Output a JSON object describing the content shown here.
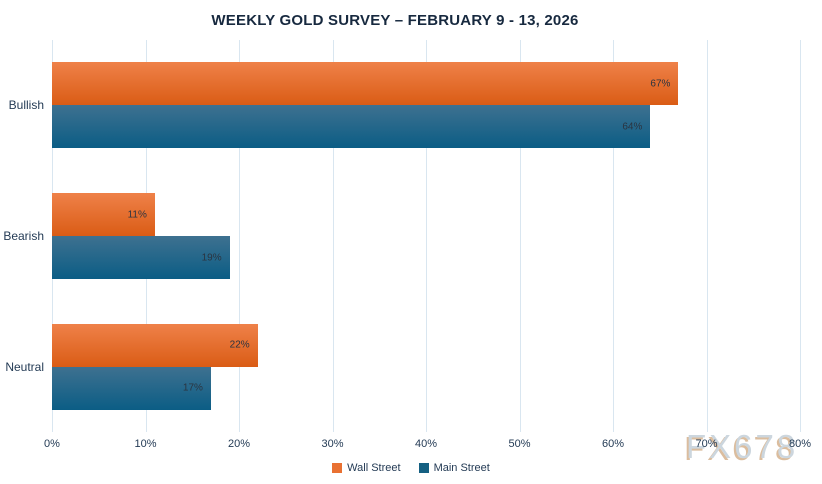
{
  "title": "WEEKLY GOLD SURVEY – FEBRUARY 9 - 13, 2026",
  "watermark": "FX678",
  "chart_data": {
    "type": "bar",
    "orientation": "horizontal",
    "title": "WEEKLY GOLD SURVEY – FEBRUARY 9 - 13, 2026",
    "categories": [
      "Bullish",
      "Bearish",
      "Neutral"
    ],
    "series": [
      {
        "name": "Wall Street",
        "values": [
          67,
          11,
          22
        ],
        "color": "#e97132",
        "gradient_top": "#ef8149",
        "gradient_bottom": "#da5c15"
      },
      {
        "name": "Main Street",
        "values": [
          64,
          19,
          17
        ],
        "color": "#156082",
        "gradient_top": "#3e7190",
        "gradient_bottom": "#0b5d85"
      }
    ],
    "value_suffix": "%",
    "xlabel": "",
    "ylabel": "",
    "xlim": [
      0,
      80
    ],
    "x_ticks": [
      "0%",
      "10%",
      "20%",
      "30%",
      "40%",
      "50%",
      "60%",
      "70%",
      "80%"
    ],
    "grid": "vertical",
    "legend_position": "bottom",
    "grid_color": "#d9e6f0",
    "label_color": "#243b55"
  }
}
